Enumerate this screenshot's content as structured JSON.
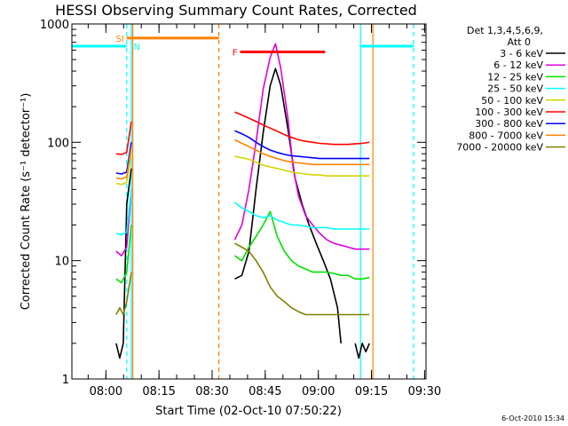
{
  "chart_data": {
    "type": "line",
    "title": "HESSI Observing Summary Count Rates, Corrected",
    "xlabel": "Start Time (02-Oct-10 07:50:22)",
    "ylabel": "Corrected Count Rate (s⁻¹ detector⁻¹)",
    "y_scale": "log",
    "ylim": [
      1,
      1000
    ],
    "xlim_minutes": [
      0,
      100
    ],
    "y_ticks": [
      {
        "v": 1,
        "label": "1"
      },
      {
        "v": 10,
        "label": "10"
      },
      {
        "v": 100,
        "label": "100"
      },
      {
        "v": 1000,
        "label": "1000"
      }
    ],
    "x_ticks": [
      {
        "m": 9.6,
        "label": "08:00"
      },
      {
        "m": 24.6,
        "label": "08:15"
      },
      {
        "m": 39.6,
        "label": "08:30"
      },
      {
        "m": 54.6,
        "label": "08:45"
      },
      {
        "m": 69.6,
        "label": "09:00"
      },
      {
        "m": 84.6,
        "label": "09:15"
      },
      {
        "m": 99.6,
        "label": "09:30"
      }
    ],
    "legend_header": [
      "Det 1,3,4,5,6,9,",
      "Att 0"
    ],
    "legend_position": "right",
    "footer_date": "6-Oct-2010 15:34",
    "series": [
      {
        "name": "3 - 6 keV",
        "color": "#000000",
        "segments": [
          [
            [
              12.5,
              2
            ],
            [
              13.5,
              1.5
            ],
            [
              14.5,
              2
            ],
            [
              15.5,
              30
            ],
            [
              16.8,
              60
            ]
          ],
          [
            [
              46,
              7
            ],
            [
              48,
              7.5
            ],
            [
              50,
              12
            ],
            [
              52,
              40
            ],
            [
              54,
              120
            ],
            [
              56,
              300
            ],
            [
              57.5,
              420
            ],
            [
              59,
              300
            ],
            [
              61,
              130
            ],
            [
              63,
              50
            ],
            [
              65,
              30
            ],
            [
              67,
              20
            ],
            [
              69,
              14
            ],
            [
              71,
              10
            ],
            [
              73,
              7
            ],
            [
              75,
              4
            ],
            [
              76,
              2
            ]
          ],
          [
            [
              80,
              2
            ],
            [
              81,
              1.5
            ],
            [
              82,
              2
            ],
            [
              83,
              1.7
            ],
            [
              84,
              2
            ]
          ]
        ]
      },
      {
        "name": "6 - 12 keV",
        "color": "#e000e0",
        "segments": [
          [
            [
              12.5,
              12
            ],
            [
              14,
              11
            ],
            [
              15.5,
              13
            ],
            [
              16.8,
              40
            ]
          ],
          [
            [
              46,
              15
            ],
            [
              48,
              20
            ],
            [
              50,
              40
            ],
            [
              52,
              100
            ],
            [
              54,
              280
            ],
            [
              56,
              520
            ],
            [
              57.5,
              680
            ],
            [
              59,
              420
            ],
            [
              61,
              160
            ],
            [
              62.5,
              60
            ],
            [
              64,
              35
            ],
            [
              66,
              24
            ],
            [
              68,
              20
            ],
            [
              70,
              17
            ],
            [
              72,
              15
            ],
            [
              74,
              14
            ],
            [
              76,
              13.5
            ],
            [
              78,
              13
            ],
            [
              80,
              12.5
            ],
            [
              82,
              12.5
            ],
            [
              84,
              12.5
            ]
          ]
        ]
      },
      {
        "name": "12 - 25 keV",
        "color": "#00e000",
        "segments": [
          [
            [
              12.5,
              7
            ],
            [
              14,
              6.5
            ],
            [
              15.5,
              8
            ],
            [
              16.8,
              20
            ]
          ],
          [
            [
              46,
              11
            ],
            [
              48,
              10
            ],
            [
              50,
              13
            ],
            [
              52,
              16
            ],
            [
              54,
              20
            ],
            [
              56,
              26
            ],
            [
              58,
              16
            ],
            [
              60,
              12
            ],
            [
              62,
              10
            ],
            [
              64,
              9
            ],
            [
              66,
              8.5
            ],
            [
              68,
              8
            ],
            [
              70,
              8
            ],
            [
              72,
              8
            ],
            [
              74,
              7.8
            ],
            [
              76,
              7.5
            ],
            [
              78,
              7.5
            ],
            [
              80,
              7
            ],
            [
              82,
              7
            ],
            [
              84,
              7.2
            ]
          ]
        ]
      },
      {
        "name": "25 - 50 keV",
        "color": "#00ffff",
        "segments": [
          [
            [
              12.5,
              17
            ],
            [
              14,
              16.5
            ],
            [
              15.5,
              17.5
            ],
            [
              16.8,
              40
            ]
          ],
          [
            [
              46,
              31
            ],
            [
              48,
              28
            ],
            [
              50,
              26
            ],
            [
              52,
              24
            ],
            [
              54,
              23
            ],
            [
              56,
              24
            ],
            [
              58,
              22
            ],
            [
              60,
              21
            ],
            [
              62,
              20
            ],
            [
              64,
              20
            ],
            [
              66,
              19.5
            ],
            [
              68,
              19
            ],
            [
              70,
              19
            ],
            [
              72,
              19
            ],
            [
              74,
              18.5
            ],
            [
              76,
              18.5
            ],
            [
              78,
              18.5
            ],
            [
              80,
              18.5
            ],
            [
              82,
              18.5
            ],
            [
              84,
              18.5
            ]
          ]
        ]
      },
      {
        "name": "50 - 100 keV",
        "color": "#d4d400",
        "segments": [
          [
            [
              12.5,
              45
            ],
            [
              14,
              44
            ],
            [
              15.5,
              46
            ],
            [
              16.8,
              80
            ]
          ],
          [
            [
              46,
              76
            ],
            [
              48,
              74
            ],
            [
              50,
              72
            ],
            [
              52,
              68
            ],
            [
              54,
              64
            ],
            [
              56,
              62
            ],
            [
              58,
              60
            ],
            [
              60,
              58
            ],
            [
              62,
              56
            ],
            [
              64,
              55
            ],
            [
              66,
              54
            ],
            [
              68,
              53
            ],
            [
              70,
              53
            ],
            [
              72,
              52
            ],
            [
              74,
              52
            ],
            [
              76,
              52
            ],
            [
              78,
              52
            ],
            [
              80,
              52
            ],
            [
              82,
              52
            ],
            [
              84,
              52
            ]
          ]
        ]
      },
      {
        "name": "100 - 300 keV",
        "color": "#ff0000",
        "segments": [
          [
            [
              12.5,
              80
            ],
            [
              14,
              79
            ],
            [
              15.5,
              82
            ],
            [
              16.8,
              150
            ]
          ],
          [
            [
              46,
              180
            ],
            [
              48,
              170
            ],
            [
              50,
              160
            ],
            [
              52,
              150
            ],
            [
              54,
              140
            ],
            [
              56,
              132
            ],
            [
              58,
              124
            ],
            [
              60,
              116
            ],
            [
              62,
              110
            ],
            [
              64,
              105
            ],
            [
              66,
              102
            ],
            [
              68,
              100
            ],
            [
              70,
              98
            ],
            [
              72,
              97
            ],
            [
              74,
              96
            ],
            [
              76,
              96
            ],
            [
              78,
              96
            ],
            [
              80,
              97
            ],
            [
              82,
              98
            ],
            [
              84,
              100
            ]
          ]
        ]
      },
      {
        "name": "300 - 800 keV",
        "color": "#0000ff",
        "segments": [
          [
            [
              12.5,
              55
            ],
            [
              14,
              54
            ],
            [
              15.5,
              56
            ],
            [
              16.8,
              100
            ]
          ],
          [
            [
              46,
              125
            ],
            [
              48,
              118
            ],
            [
              50,
              110
            ],
            [
              52,
              100
            ],
            [
              54,
              92
            ],
            [
              56,
              86
            ],
            [
              58,
              82
            ],
            [
              60,
              79
            ],
            [
              62,
              77
            ],
            [
              64,
              76
            ],
            [
              66,
              75
            ],
            [
              68,
              74
            ],
            [
              70,
              73
            ],
            [
              72,
              73
            ],
            [
              74,
              73
            ],
            [
              76,
              73
            ],
            [
              78,
              73
            ],
            [
              80,
              73
            ],
            [
              82,
              73
            ],
            [
              84,
              73
            ]
          ]
        ]
      },
      {
        "name": "800 - 7000 keV",
        "color": "#ff8000",
        "segments": [
          [
            [
              12.5,
              50
            ],
            [
              14,
              49
            ],
            [
              15.5,
              51
            ],
            [
              16.8,
              90
            ]
          ],
          [
            [
              46,
              105
            ],
            [
              48,
              98
            ],
            [
              50,
              92
            ],
            [
              52,
              86
            ],
            [
              54,
              80
            ],
            [
              56,
              76
            ],
            [
              58,
              73
            ],
            [
              60,
              70
            ],
            [
              62,
              68
            ],
            [
              64,
              67
            ],
            [
              66,
              66
            ],
            [
              68,
              65
            ],
            [
              70,
              65
            ],
            [
              72,
              65
            ],
            [
              74,
              65
            ],
            [
              76,
              65
            ],
            [
              78,
              65
            ],
            [
              80,
              65
            ],
            [
              82,
              65
            ],
            [
              84,
              65
            ]
          ]
        ]
      },
      {
        "name": "7000 - 20000 keV",
        "color": "#808000",
        "segments": [
          [
            [
              12.5,
              3.5
            ],
            [
              13.5,
              4
            ],
            [
              14.5,
              3.5
            ],
            [
              15.5,
              4.5
            ],
            [
              16.8,
              8
            ]
          ],
          [
            [
              46,
              14
            ],
            [
              48,
              13
            ],
            [
              50,
              12
            ],
            [
              52,
              10
            ],
            [
              54,
              8
            ],
            [
              56,
              6
            ],
            [
              58,
              5
            ],
            [
              60,
              4.5
            ],
            [
              62,
              4
            ],
            [
              64,
              3.7
            ],
            [
              66,
              3.5
            ],
            [
              68,
              3.5
            ],
            [
              70,
              3.5
            ],
            [
              72,
              3.5
            ],
            [
              74,
              3.5
            ],
            [
              76,
              3.5
            ],
            [
              78,
              3.5
            ],
            [
              80,
              3.5
            ],
            [
              82,
              3.5
            ],
            [
              84,
              3.5
            ]
          ]
        ]
      }
    ],
    "flag_bars": [
      {
        "label": "SI",
        "color": "#ff8000",
        "x1": 15.5,
        "x2": 41.5,
        "y": 760
      },
      {
        "label": "F",
        "color": "#ff0000",
        "x1": 47.5,
        "x2": 71.5,
        "y": 580
      }
    ],
    "flag_labels": [
      {
        "text": "N",
        "color": "#00ffff",
        "m": 17.2,
        "y": 650
      }
    ],
    "cyan_bars": [
      {
        "x1": 0,
        "x2": 15.5,
        "y": 650
      },
      {
        "x1": 81.5,
        "x2": 96.5,
        "y": 650
      }
    ],
    "vlines": [
      {
        "m": 15.5,
        "color": "#00ffff",
        "dashed": true
      },
      {
        "m": 16.8,
        "color": "#00ffff",
        "dashed": false
      },
      {
        "m": 17.2,
        "color": "#ff8000",
        "dashed": false
      },
      {
        "m": 41.5,
        "color": "#ff8000",
        "dashed": true
      },
      {
        "m": 81.5,
        "color": "#00ffff",
        "dashed": false
      },
      {
        "m": 85,
        "color": "#ff8000",
        "dashed": false
      },
      {
        "m": 96.5,
        "color": "#00ffff",
        "dashed": true
      }
    ]
  }
}
